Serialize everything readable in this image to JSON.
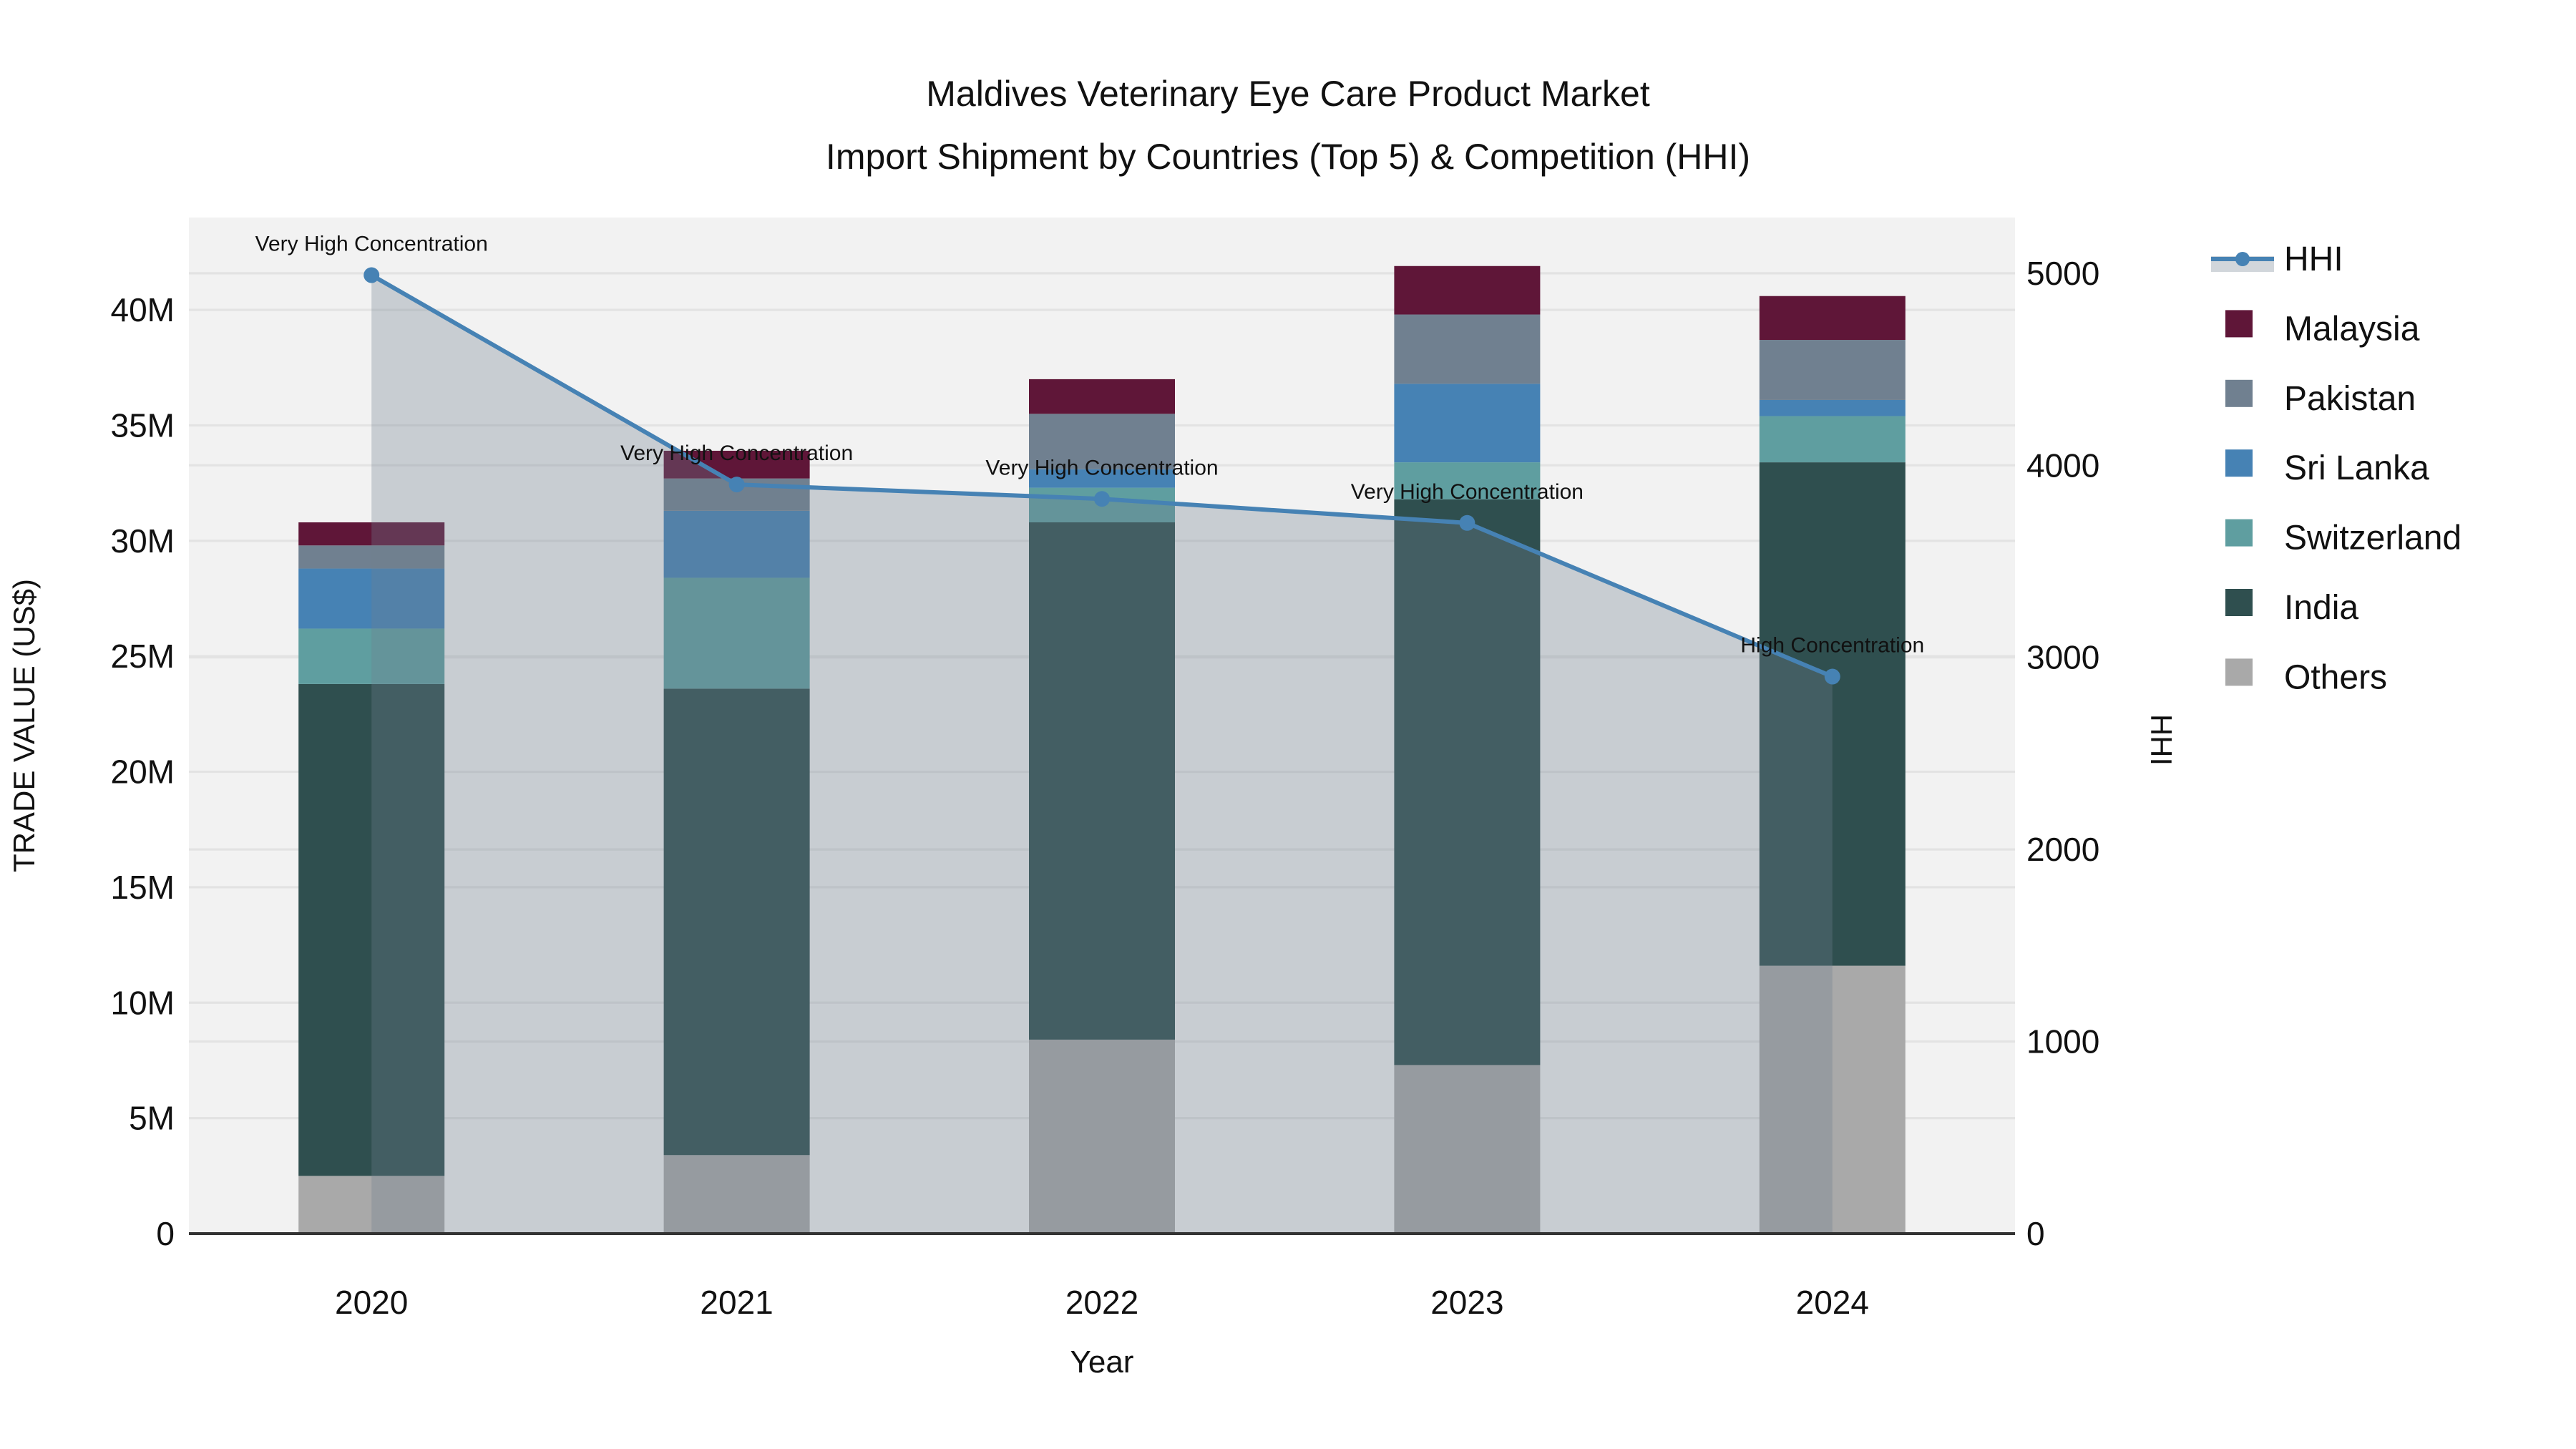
{
  "chart_data": {
    "type": "stacked-bar+line",
    "title": "Maldives Veterinary Eye Care Product Market",
    "subtitle": "Import Shipment by Countries (Top 5) & Competition (HHI)",
    "xlabel": "Year",
    "ylabel_left": "TRADE VALUE (US$)",
    "ylabel_right": "HHI",
    "categories": [
      "2020",
      "2021",
      "2022",
      "2023",
      "2024"
    ],
    "bar_series": [
      {
        "name": "Others",
        "color": "#A9A9A9",
        "values_musd": [
          2.5,
          3.4,
          8.4,
          7.3,
          11.6
        ]
      },
      {
        "name": "India",
        "color": "#2F4F4F",
        "values_musd": [
          21.3,
          20.2,
          22.4,
          24.5,
          21.8
        ]
      },
      {
        "name": "Switzerland",
        "color": "#5F9EA0",
        "values_musd": [
          2.4,
          4.8,
          1.5,
          1.6,
          2.0
        ]
      },
      {
        "name": "Sri Lanka",
        "color": "#4682B4",
        "values_musd": [
          2.6,
          2.9,
          0.8,
          3.4,
          0.7
        ]
      },
      {
        "name": "Pakistan",
        "color": "#708090",
        "values_musd": [
          1.0,
          1.4,
          2.4,
          3.0,
          2.6
        ]
      },
      {
        "name": "Malaysia",
        "color": "#5F1638",
        "values_musd": [
          1.0,
          1.2,
          1.5,
          2.1,
          1.9
        ]
      }
    ],
    "bar_totals_musd": [
      30.8,
      33.9,
      37.0,
      41.9,
      40.6
    ],
    "line_series": {
      "name": "HHI",
      "color": "#4682B4",
      "area_fill": "rgba(112,128,144,0.32)",
      "values": [
        4990,
        3900,
        3825,
        3700,
        2900
      ]
    },
    "annotations": [
      {
        "year": "2020",
        "text": "Very High Concentration"
      },
      {
        "year": "2021",
        "text": "Very High Concentration"
      },
      {
        "year": "2022",
        "text": "Very High Concentration"
      },
      {
        "year": "2023",
        "text": "Very High Concentration"
      },
      {
        "year": "2024",
        "text": "High Concentration"
      }
    ],
    "y_left": {
      "min": 0,
      "max_musd": 44,
      "tick_values_musd": [
        0,
        5,
        10,
        15,
        20,
        25,
        30,
        35,
        40
      ],
      "tick_labels": [
        "0",
        "5M",
        "10M",
        "15M",
        "20M",
        "25M",
        "30M",
        "35M",
        "40M"
      ]
    },
    "y_right": {
      "min": 0,
      "max": 5290,
      "tick_values": [
        0,
        1000,
        2000,
        3000,
        4000,
        5000
      ],
      "tick_labels": [
        "0",
        "1000",
        "2000",
        "3000",
        "4000",
        "5000"
      ]
    },
    "legend_order": [
      "HHI",
      "Malaysia",
      "Pakistan",
      "Sri Lanka",
      "Switzerland",
      "India",
      "Others"
    ],
    "style": {
      "plot_bg": "#F2F2F2",
      "grid": "#E3E3E3",
      "axis_line": "#333333",
      "text_color": "#111111"
    }
  }
}
